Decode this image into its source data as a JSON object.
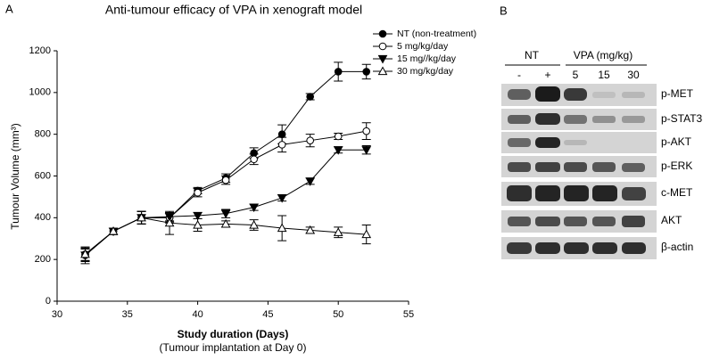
{
  "panel_labels": [
    "A",
    "B"
  ],
  "chart_data": {
    "type": "line",
    "title": "Anti-tumour efficacy of VPA in xenograft model",
    "x_label": "Study duration (Days)",
    "x_label_note": "(Tumour implantation at Day 0)",
    "y_label": "Tumour Volume (mm³)",
    "x": [
      32,
      34,
      36,
      38,
      40,
      42,
      44,
      46,
      48,
      50,
      52
    ],
    "xlim": [
      30,
      55
    ],
    "xticks": [
      30,
      35,
      40,
      45,
      50,
      55
    ],
    "ylim": [
      0,
      1200
    ],
    "yticks": [
      0,
      200,
      400,
      600,
      800,
      1000,
      1200
    ],
    "grid": false,
    "legend": "top-right",
    "series": [
      {
        "name": "NT (non-treatment)",
        "color": "#000000",
        "marker": "circle-filled",
        "values": [
          220,
          335,
          400,
          400,
          530,
          590,
          710,
          800,
          980,
          1100,
          1100
        ],
        "errors": [
          40,
          15,
          30,
          25,
          15,
          20,
          25,
          45,
          15,
          45,
          35
        ]
      },
      {
        "name": "5 mg/kg/day",
        "color": "#000000",
        "marker": "circle-open",
        "values": [
          225,
          335,
          400,
          400,
          520,
          580,
          680,
          750,
          770,
          790,
          815
        ],
        "errors": [
          30,
          15,
          30,
          20,
          20,
          20,
          25,
          35,
          30,
          15,
          40
        ]
      },
      {
        "name": "15 mg//kg/day",
        "color": "#000000",
        "marker": "triangle-down-filled",
        "values": [
          220,
          335,
          400,
          405,
          410,
          420,
          450,
          495,
          575,
          725,
          725
        ],
        "errors": [
          30,
          15,
          30,
          20,
          15,
          20,
          15,
          15,
          15,
          15,
          20
        ]
      },
      {
        "name": "30 mg/kg/day",
        "color": "#000000",
        "marker": "triangle-up-open",
        "values": [
          225,
          335,
          400,
          375,
          365,
          370,
          365,
          350,
          340,
          330,
          320
        ],
        "errors": [
          30,
          15,
          30,
          55,
          30,
          15,
          25,
          60,
          15,
          25,
          45
        ]
      }
    ]
  },
  "blot": {
    "groups": [
      "NT",
      "VPA (mg/kg)"
    ],
    "lanes": [
      "-",
      "+",
      "5",
      "15",
      "30"
    ],
    "rows": [
      "p-MET",
      "p-STAT3",
      "p-AKT",
      "p-ERK",
      "c-MET",
      "AKT",
      "β-actin"
    ]
  }
}
